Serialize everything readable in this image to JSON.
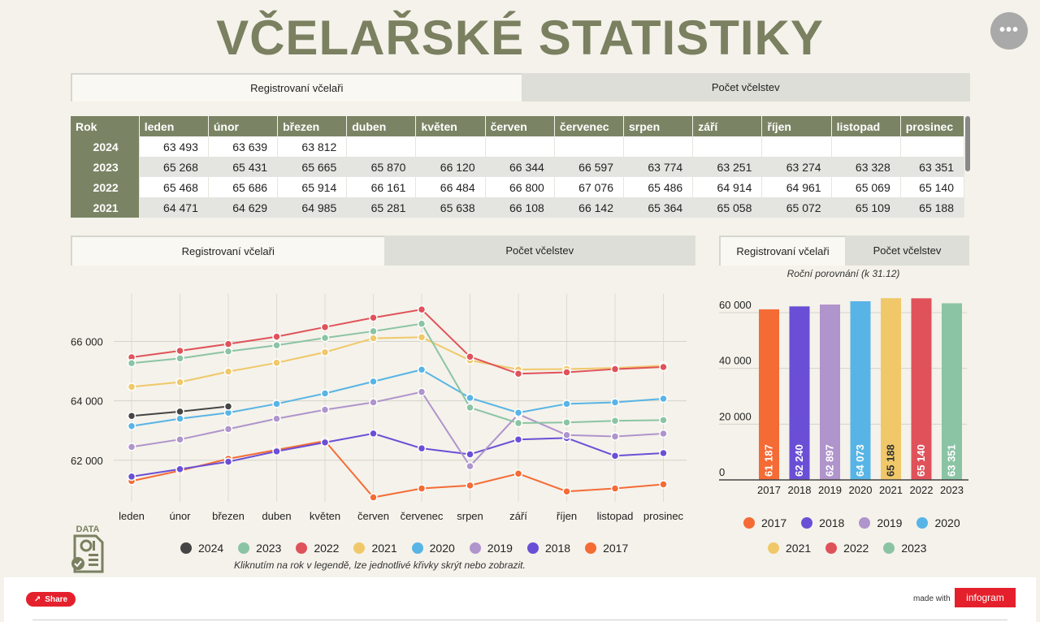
{
  "title": "VČELAŘSKÉ STATISTIKY",
  "menu_glyph": "•••",
  "top_tabs": [
    "Registrovaní včelaři",
    "Počet včelstev"
  ],
  "line_tabs": [
    "Registrovaní včelaři",
    "Počet včelstev"
  ],
  "bar_tabs": [
    "Registrovaní včelaři",
    "Počet včelstev"
  ],
  "table": {
    "headers": [
      "Rok",
      "leden",
      "únor",
      "březen",
      "duben",
      "květen",
      "červen",
      "červenec",
      "srpen",
      "září",
      "říjen",
      "listopad",
      "prosinec"
    ],
    "rows": [
      [
        "2024",
        "63 493",
        "63 639",
        "63 812",
        "",
        "",
        "",
        "",
        "",
        "",
        "",
        "",
        ""
      ],
      [
        "2023",
        "65 268",
        "65 431",
        "65 665",
        "65 870",
        "66 120",
        "66 344",
        "66 597",
        "63 774",
        "63 251",
        "63 274",
        "63 328",
        "63 351"
      ],
      [
        "2022",
        "65 468",
        "65 686",
        "65 914",
        "66 161",
        "66 484",
        "66 800",
        "67 076",
        "65 486",
        "64 914",
        "64 961",
        "65 069",
        "65 140"
      ],
      [
        "2021",
        "64 471",
        "64 629",
        "64 985",
        "65 281",
        "65 638",
        "66 108",
        "66 142",
        "65 364",
        "65 058",
        "65 072",
        "65 109",
        "65 188"
      ]
    ]
  },
  "legend_note": "Kliknutím na rok v legendě, lze jednotlivé křivky skrýt nebo zobrazit.",
  "data_label": "DATA",
  "share_label": "Share",
  "made_with": "made with",
  "brand": "infogram",
  "chart_data": [
    {
      "type": "line",
      "x": [
        "leden",
        "únor",
        "březen",
        "duben",
        "květen",
        "červen",
        "červenec",
        "srpen",
        "září",
        "říjen",
        "listopad",
        "prosinec"
      ],
      "ylim": [
        60600,
        67600
      ],
      "yticks": [
        62000,
        64000,
        66000
      ],
      "ytick_labels": [
        "62 000",
        "64 000",
        "66 000"
      ],
      "grid": true,
      "legend": "bottom",
      "series": [
        {
          "name": "2024",
          "color": "#454545",
          "values": [
            63493,
            63639,
            63812,
            null,
            null,
            null,
            null,
            null,
            null,
            null,
            null,
            null
          ]
        },
        {
          "name": "2023",
          "color": "#8bc4a4",
          "values": [
            65268,
            65431,
            65665,
            65870,
            66120,
            66344,
            66597,
            63774,
            63251,
            63274,
            63328,
            63351
          ]
        },
        {
          "name": "2022",
          "color": "#e0525a",
          "values": [
            65468,
            65686,
            65914,
            66161,
            66484,
            66800,
            67076,
            65486,
            64914,
            64961,
            65069,
            65140
          ]
        },
        {
          "name": "2021",
          "color": "#f0c86a",
          "values": [
            64471,
            64629,
            64985,
            65281,
            65638,
            66108,
            66142,
            65364,
            65058,
            65072,
            65109,
            65188
          ]
        },
        {
          "name": "2020",
          "color": "#58b4e6",
          "values": [
            63150,
            63400,
            63600,
            63900,
            64250,
            64650,
            65050,
            64100,
            63600,
            63900,
            63950,
            64073
          ]
        },
        {
          "name": "2019",
          "color": "#b094cc",
          "values": [
            62450,
            62700,
            63050,
            63400,
            63700,
            63950,
            64300,
            61800,
            63550,
            62850,
            62800,
            62897
          ]
        },
        {
          "name": "2018",
          "color": "#6a4fd6",
          "values": [
            61450,
            61700,
            61950,
            62300,
            62600,
            62900,
            62400,
            62200,
            62700,
            62750,
            62150,
            62240
          ]
        },
        {
          "name": "2017",
          "color": "#f56b35",
          "values": [
            61300,
            61650,
            62050,
            62350,
            62650,
            60750,
            61050,
            61150,
            61550,
            60950,
            61050,
            61187
          ]
        }
      ]
    },
    {
      "type": "bar",
      "title": "Roční porovnání (k 31.12)",
      "categories": [
        "2017",
        "2018",
        "2019",
        "2020",
        "2021",
        "2022",
        "2023"
      ],
      "values": [
        61187,
        62240,
        62897,
        64073,
        65188,
        65140,
        63351
      ],
      "value_labels": [
        "61 187",
        "62 240",
        "62 897",
        "64 073",
        "65 188",
        "65 140",
        "63 351"
      ],
      "colors": [
        "#f56b35",
        "#6a4fd6",
        "#b094cc",
        "#58b4e6",
        "#f0c86a",
        "#e0525a",
        "#8bc4a4"
      ],
      "ylim": [
        0,
        67000
      ],
      "yticks": [
        0,
        20000,
        40000,
        60000
      ],
      "ytick_labels": [
        "0",
        "20 000",
        "40 000",
        "60 000"
      ],
      "legend": "bottom"
    }
  ]
}
